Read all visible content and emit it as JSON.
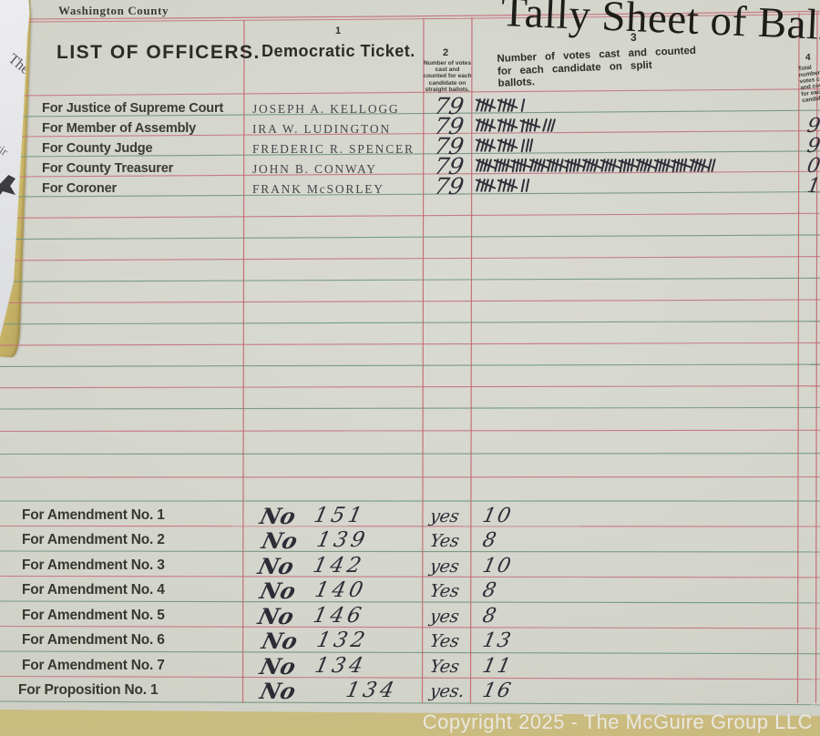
{
  "page_labels": {
    "county": "Washington County",
    "title": "Tally Sheet of Ballots",
    "list_header": "LIST OF OFFICERS.",
    "watermark": "Copyright 2025 - The McGuire Group LLC",
    "scrap_fragment_1": "The",
    "scrap_fragment_2": "uir"
  },
  "columns": [
    {
      "number": "1",
      "label": "Democratic Ticket."
    },
    {
      "number": "2",
      "label": "Number of votes cast and counted for each candidate on straight ballots."
    },
    {
      "number": "3",
      "label_line1": "Number of votes cast and counted",
      "label_line2": "for each candidate on split",
      "label_line3": "ballots."
    },
    {
      "number": "4",
      "label": "Total number votes cast and counted for each candidate",
      "clipped": true
    }
  ],
  "officers": [
    {
      "office": "For Justice of Supreme Court",
      "candidate": "JOSEPH A. KELLOGG",
      "straight_votes": "79",
      "split_tally_groups": [
        5,
        5,
        1
      ],
      "split_total": 11,
      "total_partial": ""
    },
    {
      "office": "For Member of Assembly",
      "candidate": "IRA W. LUDINGTON",
      "straight_votes": "79",
      "split_tally_groups": [
        5,
        5,
        5,
        3
      ],
      "split_total": 18,
      "total_partial": "9"
    },
    {
      "office": "For County Judge",
      "candidate": "FREDERIC R. SPENCER",
      "straight_votes": "79",
      "split_tally_groups": [
        5,
        5,
        3
      ],
      "split_total": 13,
      "total_partial": "9"
    },
    {
      "office": "For County Treasurer",
      "candidate": "JOHN B. CONWAY",
      "straight_votes": "79",
      "split_tally_groups": [
        5,
        5,
        5,
        5,
        5,
        5,
        5,
        5,
        5,
        5,
        5,
        5,
        5,
        2
      ],
      "split_total": 67,
      "total_partial": "0"
    },
    {
      "office": "For Coroner",
      "candidate": "FRANK McSORLEY",
      "straight_votes": "79",
      "split_tally_groups": [
        5,
        5,
        2
      ],
      "split_total": 12,
      "total_partial": "1"
    }
  ],
  "propositions": [
    {
      "label": "For Amendment No. 1",
      "no_word": "No",
      "no_votes": "151",
      "yes_word": "yes",
      "yes_votes": "10"
    },
    {
      "label": "For Amendment No. 2",
      "no_word": "No",
      "no_votes": "139",
      "yes_word": "Yes",
      "yes_votes": "8"
    },
    {
      "label": "For Amendment No. 3",
      "no_word": "No",
      "no_votes": "142",
      "yes_word": "yes",
      "yes_votes": "10"
    },
    {
      "label": "For Amendment No. 4",
      "no_word": "No",
      "no_votes": "140",
      "yes_word": "Yes",
      "yes_votes": "8"
    },
    {
      "label": "For Amendment No. 5",
      "no_word": "No",
      "no_votes": "146",
      "yes_word": "yes",
      "yes_votes": "8"
    },
    {
      "label": "For Amendment No. 6",
      "no_word": "No",
      "no_votes": "132",
      "yes_word": "Yes",
      "yes_votes": "13"
    },
    {
      "label": "For Amendment No. 7",
      "no_word": "No",
      "no_votes": "134",
      "yes_word": "Yes",
      "yes_votes": "11"
    },
    {
      "label": "For Proposition No. 1",
      "no_word": "No",
      "no_votes": "134",
      "yes_word": "yes.",
      "yes_votes": "16"
    }
  ],
  "colors": {
    "paper": "#d3d4cb",
    "rule_pink": "#c4717c",
    "rule_teal": "#6f957f",
    "rule_vertical": "#c4606c",
    "ink": "#2d2d37",
    "print": "#2c2c27",
    "desk": "#cfc083",
    "deckle": "#d3bf70"
  }
}
